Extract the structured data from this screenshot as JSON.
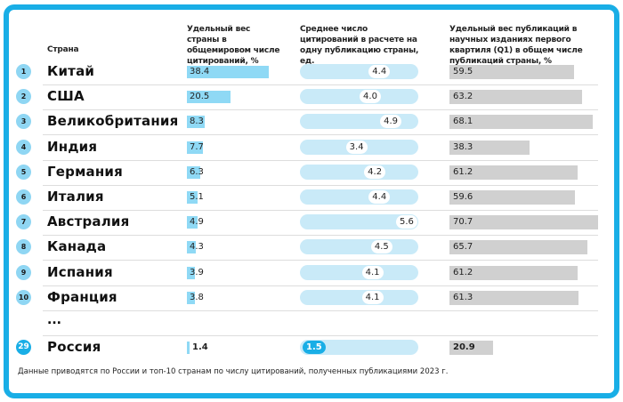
{
  "chart_data": {
    "type": "table",
    "headers": {
      "country": "Страна",
      "col1": "Удельный вес страны в общемировом числе цитирований, %",
      "col2": "Среднее число цитирований в расчете на одну публикацию страны, ед.",
      "col3": "Удельный вес публикаций в научных изданиях первого квартиля (Q1) в общем числе публикаций страны, %"
    },
    "rows": [
      {
        "rank": "1",
        "country": "Китай",
        "share": 38.4,
        "cites": 4.4,
        "q1": 59.5
      },
      {
        "rank": "2",
        "country": "США",
        "share": 20.5,
        "cites": 4.0,
        "q1": 63.2
      },
      {
        "rank": "3",
        "country": "Великобритания",
        "share": 8.3,
        "cites": 4.9,
        "q1": 68.1
      },
      {
        "rank": "4",
        "country": "Индия",
        "share": 7.7,
        "cites": 3.4,
        "q1": 38.3
      },
      {
        "rank": "5",
        "country": "Германия",
        "share": 6.3,
        "cites": 4.2,
        "q1": 61.2
      },
      {
        "rank": "6",
        "country": "Италия",
        "share": 5.1,
        "cites": 4.4,
        "q1": 59.6
      },
      {
        "rank": "7",
        "country": "Австралия",
        "share": 4.9,
        "cites": 5.6,
        "q1": 70.7
      },
      {
        "rank": "8",
        "country": "Канада",
        "share": 4.3,
        "cites": 4.5,
        "q1": 65.7
      },
      {
        "rank": "9",
        "country": "Испания",
        "share": 3.9,
        "cites": 4.1,
        "q1": 61.2
      },
      {
        "rank": "10",
        "country": "Франция",
        "share": 3.8,
        "cites": 4.1,
        "q1": 61.3
      }
    ],
    "ellipsis": "...",
    "highlight": {
      "rank": "29",
      "country": "Россия",
      "share": 1.4,
      "cites": 1.5,
      "q1": 20.9
    },
    "footnote": "Данные приводятся по России и топ-10 странам по числу цитирований, полученных публикациями 2023 г.",
    "colors": {
      "frame": "#19aee6",
      "share_bar": "#8fd9f5",
      "cites_pill": "#c9eaf8",
      "q1_bar": "#d0d0d0"
    }
  }
}
